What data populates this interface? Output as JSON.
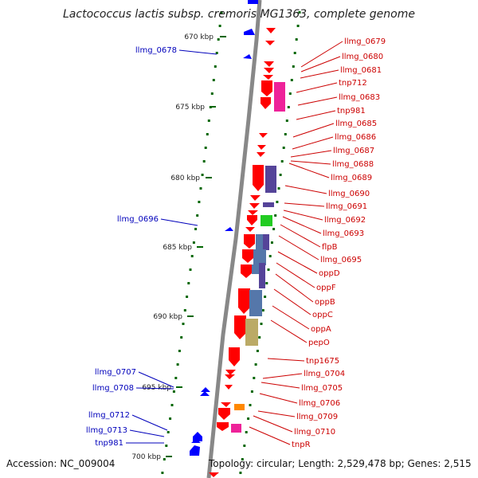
{
  "title": "Lactococcus lactis subsp. cremoris MG1363, complete genome",
  "footer": {
    "accession": "Accession: NC_009004",
    "summary": "Topology: circular; Length: 2,529,478 bp; Genes: 2,515"
  },
  "colors": {
    "forward": "#ff0000",
    "reverse": "#0000ff",
    "left_label": "#0000bb",
    "right_label": "#cc0000",
    "tick": "#006600",
    "backbone": "#888888",
    "purple_block": "#554499",
    "green_block": "#22cc22",
    "steel_block": "#5577aa",
    "khaki_block": "#bbaa66",
    "magenta_block": "#ee2299",
    "orange_block": "#ff8800"
  },
  "scale_labels": [
    {
      "text": "670 kbp",
      "kbp": 670
    },
    {
      "text": "675 kbp",
      "kbp": 675
    },
    {
      "text": "680 kbp",
      "kbp": 680
    },
    {
      "text": "685 kbp",
      "kbp": 685
    },
    {
      "text": "690 kbp",
      "kbp": 690
    },
    {
      "text": "695 kbp",
      "kbp": 695
    },
    {
      "text": "700 kbp",
      "kbp": 700
    }
  ],
  "left_genes": [
    "llmg_0678",
    "llmg_0696",
    "llmg_0707",
    "llmg_0708",
    "llmg_0712",
    "llmg_0713",
    "tnp981"
  ],
  "right_genes": [
    "llmg_0679",
    "llmg_0680",
    "llmg_0681",
    "tnp712",
    "llmg_0683",
    "tnp981",
    "llmg_0685",
    "llmg_0686",
    "llmg_0687",
    "llmg_0688",
    "llmg_0689",
    "llmg_0690",
    "llmg_0691",
    "llmg_0692",
    "llmg_0693",
    "flpB",
    "llmg_0695",
    "oppD",
    "oppF",
    "oppB",
    "oppC",
    "oppA",
    "pepO",
    "tnp1675",
    "llmg_0704",
    "llmg_0705",
    "llmg_0706",
    "llmg_0709",
    "llmg_0710",
    "tnpR"
  ]
}
